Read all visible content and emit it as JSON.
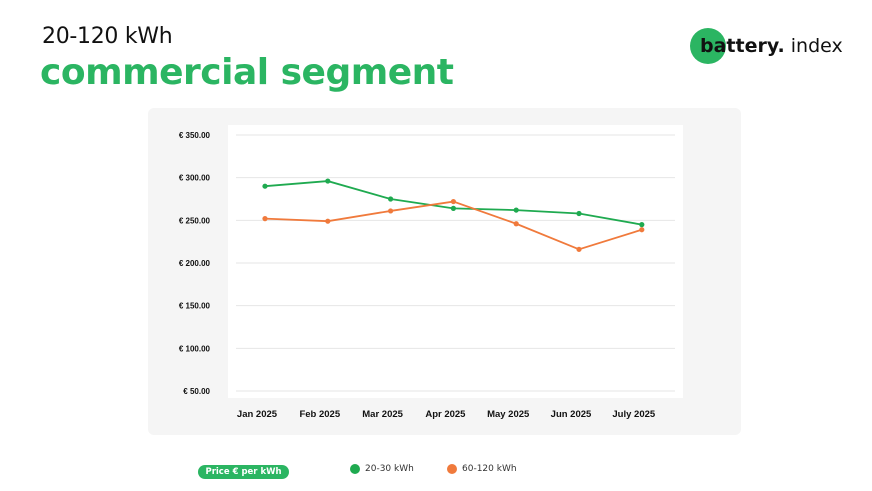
{
  "header": {
    "subtitle": "20-120 kWh",
    "title": "commercial segment"
  },
  "logo": {
    "bold": "battery.",
    "light": "index"
  },
  "chart_data": {
    "type": "line",
    "categories": [
      "Jan 2025",
      "Feb 2025",
      "Mar 2025",
      "Apr 2025",
      "May 2025",
      "Jun 2025",
      "July 2025"
    ],
    "ylim": [
      50,
      350
    ],
    "yticks": [
      350,
      300,
      250,
      200,
      150,
      100,
      50
    ],
    "ytick_labels": [
      "€ 350.00",
      "€ 300.00",
      "€ 250.00",
      "€ 200.00",
      "€ 150.00",
      "€ 100.00",
      "€ 50.00"
    ],
    "grid": true,
    "legend_placement": "bottom",
    "legend_title": "Price € per kWh",
    "series": [
      {
        "name": "20-30 kWh",
        "color": "#1faa50",
        "values": [
          290,
          296,
          275,
          264,
          262,
          258,
          245
        ]
      },
      {
        "name": "60-120 kWh",
        "color": "#f07a3c",
        "values": [
          252,
          249,
          261,
          272,
          246,
          216,
          239
        ]
      }
    ]
  }
}
